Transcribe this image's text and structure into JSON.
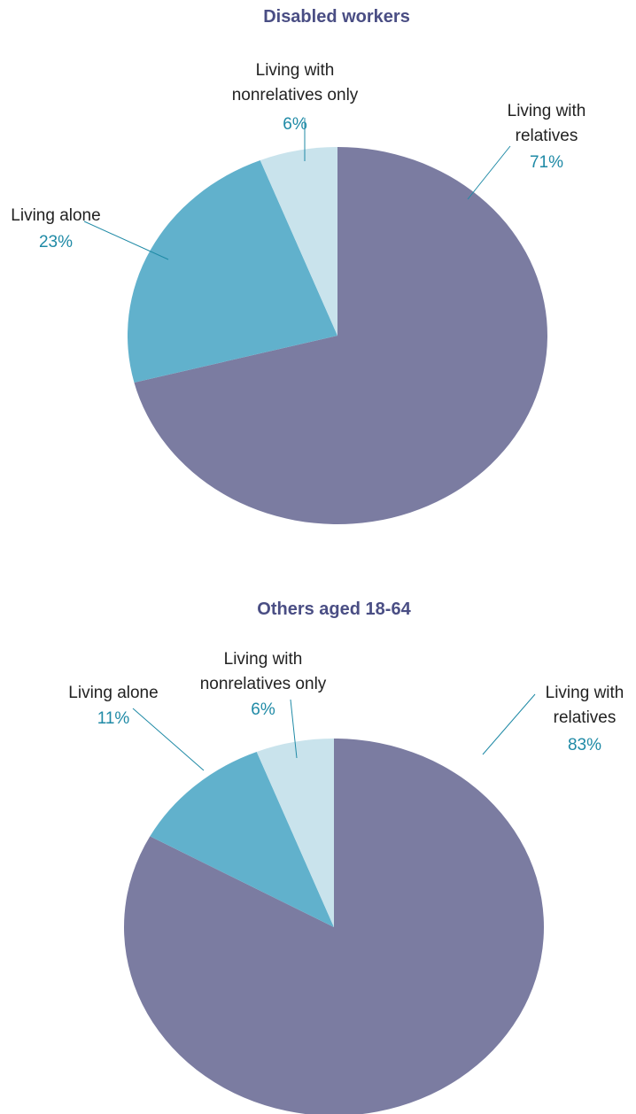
{
  "chart_data": [
    {
      "type": "pie",
      "title": "Disabled workers",
      "categories": [
        "Living with relatives",
        "Living alone",
        "Living with nonrelatives only"
      ],
      "values": [
        71,
        23,
        6
      ],
      "value_labels": [
        "71%",
        "23%",
        "6%"
      ],
      "colors": [
        "#7b7ca1",
        "#61b1cc",
        "#c9e3ec"
      ]
    },
    {
      "type": "pie",
      "title": "Others aged 18-64",
      "categories": [
        "Living with relatives",
        "Living alone",
        "Living with nonrelatives only"
      ],
      "values": [
        83,
        11,
        6
      ],
      "value_labels": [
        "83%",
        "11%",
        "6%"
      ],
      "colors": [
        "#7b7ca1",
        "#61b1cc",
        "#c9e3ec"
      ]
    }
  ]
}
